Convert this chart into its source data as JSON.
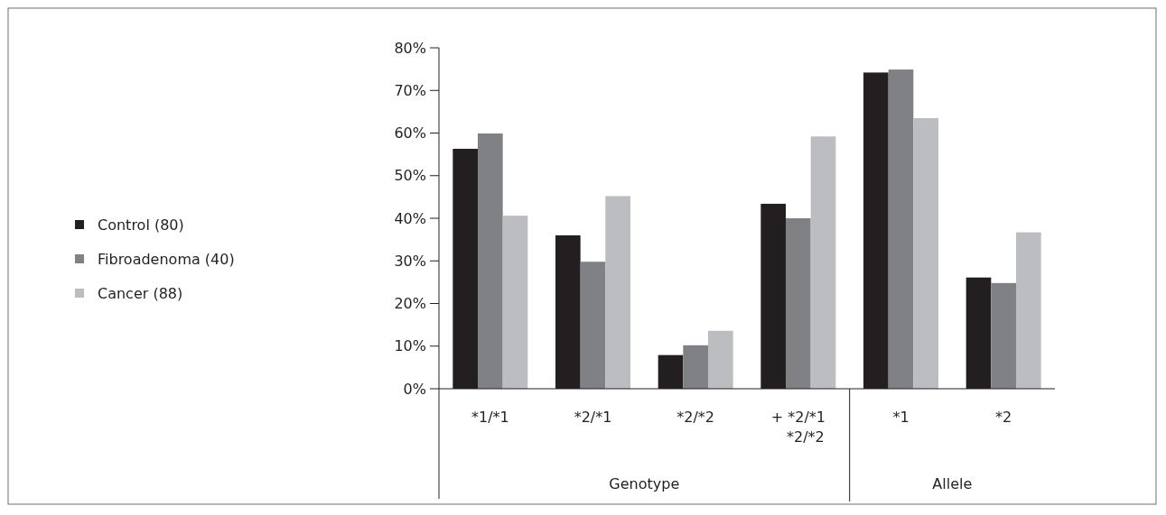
{
  "chart_data": {
    "type": "bar",
    "categories": [
      "*1/*1",
      "*2/*1",
      "*2/*2",
      "+ *2/*1 *2/*2",
      "*1",
      "*2"
    ],
    "series": [
      {
        "name": "Control (80)",
        "color": "#231f20",
        "values": [
          56.3,
          36.0,
          7.9,
          43.4,
          74.2,
          26.1
        ]
      },
      {
        "name": "Fibroadenoma (40)",
        "color": "#808184",
        "values": [
          59.9,
          29.8,
          10.2,
          40.0,
          74.9,
          24.8
        ]
      },
      {
        "name": "Cancer (88)",
        "color": "#bcbdc1",
        "values": [
          40.6,
          45.2,
          13.6,
          59.2,
          63.5,
          36.7
        ]
      }
    ],
    "ylim": [
      0,
      80
    ],
    "yticks": [
      {
        "value": 0,
        "label": "0%"
      },
      {
        "value": 10,
        "label": "10%"
      },
      {
        "value": 20,
        "label": "20%"
      },
      {
        "value": 30,
        "label": "30%"
      },
      {
        "value": 40,
        "label": "40%"
      },
      {
        "value": 50,
        "label": "50%"
      },
      {
        "value": 60,
        "label": "60%"
      },
      {
        "value": 70,
        "label": "70%"
      },
      {
        "value": 80,
        "label": "80%"
      }
    ],
    "annotations": [
      "Genotype",
      "Allele"
    ],
    "legend": "left",
    "grid": false
  }
}
